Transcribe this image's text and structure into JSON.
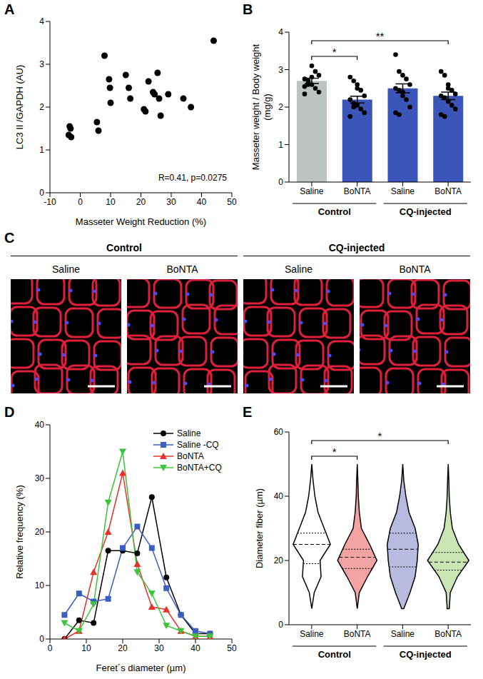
{
  "chart_data": [
    {
      "panel": "A",
      "type": "scatter",
      "x_label": "Masseter Weight Reduction (%)",
      "y_label": "LC3 II /GAPDH (AU)",
      "x": [
        -3.8,
        -3.2,
        -3.0,
        -3.5,
        5.5,
        6.0,
        8.0,
        9.5,
        9.8,
        10.0,
        15.0,
        16.0,
        16.5,
        21.0,
        21.5,
        22.5,
        24.0,
        24.5,
        25.5,
        26.0,
        26.5,
        29.0,
        34.0,
        36.5,
        44.0
      ],
      "values": [
        1.35,
        1.5,
        1.3,
        1.55,
        1.65,
        1.45,
        3.2,
        2.65,
        2.45,
        2.1,
        2.75,
        2.45,
        2.2,
        1.95,
        1.9,
        2.6,
        2.35,
        2.3,
        2.8,
        2.2,
        1.8,
        2.3,
        2.2,
        2.0,
        3.55
      ],
      "color": "#000000",
      "xlim": [
        -10,
        50
      ],
      "xticks": [
        -10,
        0,
        10,
        20,
        30,
        40,
        50
      ],
      "ylim": [
        0,
        4
      ],
      "yticks": [
        0,
        1,
        2,
        3,
        4
      ],
      "annotations": [
        "R=0.41, p=0.0275"
      ]
    },
    {
      "panel": "B",
      "type": "bar",
      "y_label": "Masseter weight / Body weight",
      "y_unit": "(mg/g)",
      "categories": [
        "Saline",
        "BoNTA",
        "Saline",
        "BoNTA"
      ],
      "groups": [
        {
          "label": "Control",
          "members": [
            0,
            1
          ]
        },
        {
          "label": "CQ-injected",
          "members": [
            2,
            3
          ]
        }
      ],
      "values": [
        2.7,
        2.2,
        2.5,
        2.3
      ],
      "errors": [
        0.07,
        0.09,
        0.12,
        0.1
      ],
      "colors": [
        "#bdc3c3",
        "#3b55b8",
        "#3b55b8",
        "#3b55b8"
      ],
      "points": [
        [
          2.55,
          2.6,
          3.1,
          2.95,
          2.85,
          2.75,
          2.7,
          2.6,
          2.5,
          2.4,
          2.35,
          2.65,
          2.8
        ],
        [
          2.8,
          2.7,
          2.6,
          2.45,
          2.3,
          2.2,
          2.1,
          2.05,
          1.95,
          1.85,
          1.75,
          2.0,
          2.5
        ],
        [
          3.4,
          2.95,
          2.85,
          2.75,
          2.6,
          2.5,
          2.45,
          2.4,
          2.2,
          2.0,
          1.85,
          1.8,
          2.3
        ],
        [
          2.95,
          2.85,
          2.6,
          2.45,
          2.35,
          2.3,
          2.25,
          2.15,
          2.05,
          1.95,
          1.8,
          1.75,
          2.5
        ]
      ],
      "significance": [
        {
          "from": 0,
          "to": 1,
          "label": "*"
        },
        {
          "from": 0,
          "to": 3,
          "label": "**"
        }
      ],
      "ylim": [
        0,
        4
      ],
      "yticks": [
        0,
        1,
        2,
        3,
        4
      ]
    },
    {
      "panel": "D",
      "type": "line",
      "x_label": "Feret´s diameter (µm)",
      "y_label": "Relative frequency (%)",
      "x": [
        4,
        8,
        12,
        16,
        20,
        24,
        28,
        32,
        36,
        40,
        44
      ],
      "series": [
        {
          "name": "Saline",
          "color": "#000000",
          "marker": "circle",
          "values": [
            0,
            3.5,
            3,
            16.5,
            16.5,
            16,
            26.5,
            11.5,
            4.5,
            1,
            1
          ]
        },
        {
          "name": "Saline -CQ",
          "color": "#3b5fc0",
          "marker": "square",
          "values": [
            4.5,
            8.5,
            7,
            7.5,
            17,
            21,
            17,
            9.5,
            4.5,
            1.5,
            1
          ]
        },
        {
          "name": "BoNTA",
          "color": "#e8312a",
          "marker": "triangle",
          "values": [
            0,
            1.5,
            12.5,
            20,
            31,
            14,
            6,
            5.5,
            1.5,
            0.5,
            0.5
          ]
        },
        {
          "name": "BoNTA+CQ",
          "color": "#3cc43c",
          "marker": "triangle-down",
          "values": [
            3,
            1.5,
            6.5,
            25.5,
            35,
            12.5,
            8.5,
            2.5,
            1.5,
            0.5,
            0.5
          ]
        }
      ],
      "xlim": [
        0,
        50
      ],
      "xticks": [
        0,
        10,
        20,
        30,
        40,
        50
      ],
      "ylim": [
        0,
        40
      ],
      "yticks": [
        0,
        10,
        20,
        30,
        40
      ],
      "legend": "top-right"
    },
    {
      "panel": "E",
      "type": "violin",
      "y_label": "Diameter fiber (µm)",
      "categories": [
        "Saline",
        "BoNTA",
        "Saline",
        "BoNTA"
      ],
      "groups": [
        {
          "label": "Control",
          "members": [
            0,
            1
          ]
        },
        {
          "label": "CQ-injected",
          "members": [
            2,
            3
          ]
        }
      ],
      "colors": [
        "#ffffff",
        "#f4a3a3",
        "#b9badf",
        "#c8e5b3"
      ],
      "density_y": [
        5,
        10,
        15,
        20,
        25,
        30,
        35,
        40,
        45,
        50
      ],
      "density": [
        [
          0,
          0.12,
          0.45,
          0.4,
          0.9,
          0.6,
          0.3,
          0.15,
          0.06,
          0
        ],
        [
          0,
          0.1,
          0.5,
          0.95,
          0.6,
          0.2,
          0.1,
          0.05,
          0.03,
          0
        ],
        [
          0.05,
          0.35,
          0.6,
          0.7,
          0.75,
          0.6,
          0.3,
          0.15,
          0.05,
          0
        ],
        [
          0.05,
          0.1,
          0.45,
          1.0,
          0.5,
          0.2,
          0.1,
          0.05,
          0.03,
          0
        ]
      ],
      "medians": [
        25,
        21,
        23.5,
        19.5
      ],
      "q1": [
        19,
        17.5,
        18,
        17
      ],
      "q3": [
        28.5,
        23.5,
        28.5,
        22.5
      ],
      "significance": [
        {
          "from": 0,
          "to": 1,
          "label": "*"
        },
        {
          "from": 0,
          "to": 3,
          "label": "*"
        }
      ],
      "ylim": [
        0,
        60
      ],
      "yticks": [
        0,
        20,
        40,
        60
      ]
    }
  ],
  "image_panel": {
    "panel": "C",
    "groups": [
      {
        "label": "Control",
        "members": [
          0,
          1
        ]
      },
      {
        "label": "CQ-injected",
        "members": [
          2,
          3
        ]
      }
    ],
    "titles": [
      "Saline",
      "BoNTA",
      "Saline",
      "BoNTA"
    ]
  }
}
